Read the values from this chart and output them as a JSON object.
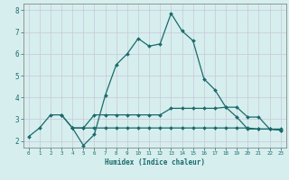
{
  "title": "",
  "xlabel": "Humidex (Indice chaleur)",
  "ylabel": "",
  "bg_color": "#d6eeee",
  "line_color": "#1a6b6b",
  "grid_color": "#c8c8d8",
  "spine_color": "#888888",
  "xlim": [
    -0.5,
    23.5
  ],
  "ylim": [
    1.7,
    8.3
  ],
  "xticks": [
    0,
    1,
    2,
    3,
    4,
    5,
    6,
    7,
    8,
    9,
    10,
    11,
    12,
    13,
    14,
    15,
    16,
    17,
    18,
    19,
    20,
    21,
    22,
    23
  ],
  "yticks": [
    2,
    3,
    4,
    5,
    6,
    7,
    8
  ],
  "line1_x": [
    0,
    1,
    2,
    3,
    4,
    5,
    6,
    7,
    8,
    9,
    10,
    11,
    12,
    13,
    14,
    15,
    16,
    17,
    18,
    19,
    20,
    21,
    22,
    23
  ],
  "line1_y": [
    2.2,
    2.6,
    3.2,
    3.2,
    2.6,
    1.8,
    2.3,
    4.1,
    5.5,
    6.0,
    6.7,
    6.35,
    6.45,
    7.85,
    7.05,
    6.6,
    4.85,
    4.35,
    3.55,
    3.1,
    2.55,
    2.55,
    2.55,
    2.5
  ],
  "line2_x": [
    3,
    4,
    5,
    6,
    7,
    8,
    9,
    10,
    11,
    12,
    13,
    14,
    15,
    16,
    17,
    18,
    19,
    20,
    21,
    22,
    23
  ],
  "line2_y": [
    3.2,
    2.6,
    2.6,
    3.2,
    3.2,
    3.2,
    3.2,
    3.2,
    3.2,
    3.2,
    3.5,
    3.5,
    3.5,
    3.5,
    3.5,
    3.55,
    3.55,
    3.1,
    3.1,
    2.55,
    2.55
  ],
  "line3_x": [
    4,
    5,
    6,
    7,
    8,
    9,
    10,
    11,
    12,
    13,
    14,
    15,
    16,
    17,
    18,
    19,
    20,
    21,
    22,
    23
  ],
  "line3_y": [
    2.6,
    2.6,
    2.6,
    2.6,
    2.6,
    2.6,
    2.6,
    2.6,
    2.6,
    2.6,
    2.6,
    2.6,
    2.6,
    2.6,
    2.6,
    2.6,
    2.6,
    2.55,
    2.55,
    2.5
  ]
}
